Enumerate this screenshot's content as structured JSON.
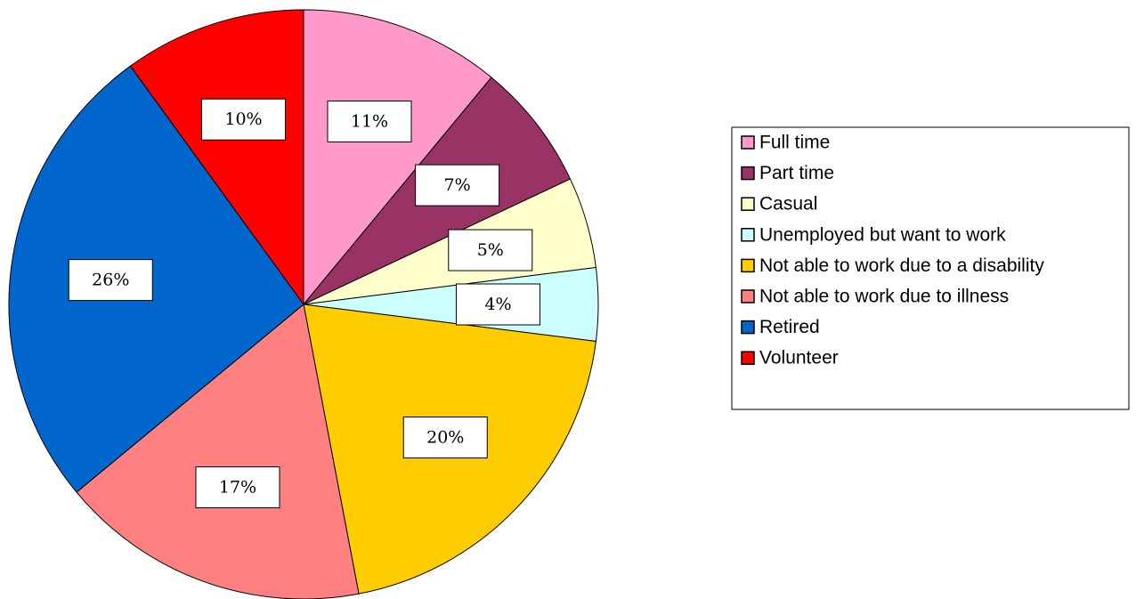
{
  "chart_data": {
    "type": "pie",
    "categories": [
      "Full time",
      "Part time",
      "Casual",
      "Unemployed but want to work",
      "Not able to work due to a disability",
      "Not able to work due to illness",
      "Retired",
      "Volunteer"
    ],
    "values": [
      11,
      7,
      5,
      4,
      20,
      17,
      26,
      10
    ],
    "value_labels": [
      "11%",
      "7%",
      "5%",
      "4%",
      "20%",
      "17%",
      "26%",
      "10%"
    ],
    "colors": [
      "#ff99cc",
      "#993366",
      "#ffffcc",
      "#ccffff",
      "#ffcc00",
      "#ff8080",
      "#0066cc",
      "#ff0000"
    ],
    "legend": "right"
  }
}
